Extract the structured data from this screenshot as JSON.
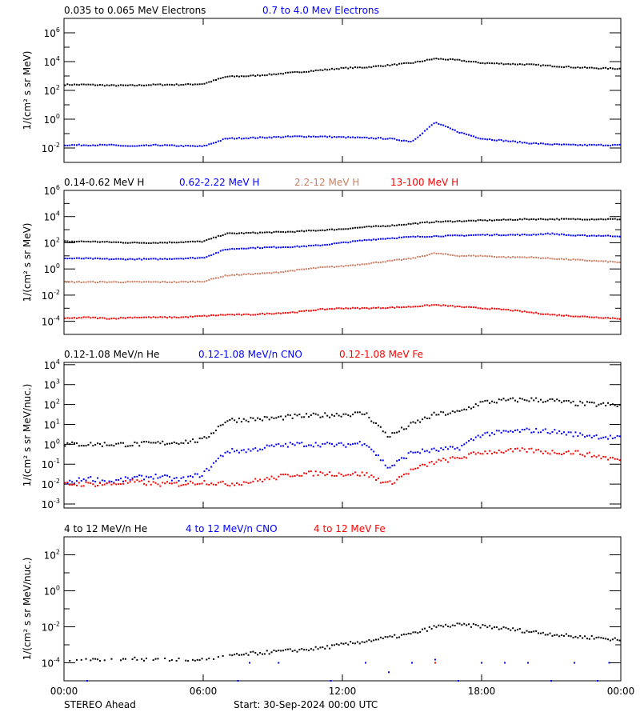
{
  "colors": {
    "black": "#000000",
    "blue": "#0000ff",
    "brown": "#c87f64",
    "red": "#ff0000"
  },
  "x_axis": {
    "range": [
      "00:00",
      "24:00"
    ],
    "tick_labels": [
      "00:00",
      "06:00",
      "12:00",
      "18:00",
      "00:00"
    ]
  },
  "footer": {
    "spacecraft": "STEREO Ahead",
    "start": "Start: 30-Sep-2024 00:00 UTC"
  },
  "chart_data": [
    {
      "type": "scatter",
      "ylabel": "1/(cm² s sr MeV)",
      "yscale": "log",
      "ylim": [
        0.001,
        10000000.0
      ],
      "ytick_exponents": [
        6,
        4,
        2,
        0,
        -2
      ],
      "x": [
        "00:00",
        "01:00",
        "02:00",
        "03:00",
        "04:00",
        "05:00",
        "06:00",
        "07:00",
        "08:00",
        "09:00",
        "10:00",
        "11:00",
        "12:00",
        "13:00",
        "14:00",
        "15:00",
        "16:00",
        "17:00",
        "18:00",
        "19:00",
        "20:00",
        "21:00",
        "22:00",
        "23:00",
        "24:00"
      ],
      "series": [
        {
          "name": "0.035 to 0.065 MeV Electrons",
          "color": "#000000",
          "values": [
            250,
            250,
            220,
            220,
            250,
            250,
            280,
            900,
            1000,
            1300,
            1800,
            2500,
            3500,
            4000,
            5600,
            8000,
            16000,
            12600,
            8000,
            7000,
            6300,
            5000,
            4000,
            3500,
            3200
          ]
        },
        {
          "name": "0.7 to 4.0 Mev Electrons",
          "color": "#0000ff",
          "values": [
            0.016,
            0.016,
            0.016,
            0.013,
            0.016,
            0.014,
            0.013,
            0.045,
            0.05,
            0.056,
            0.063,
            0.063,
            0.056,
            0.05,
            0.045,
            0.028,
            0.6,
            0.13,
            0.045,
            0.032,
            0.022,
            0.018,
            0.016,
            0.016,
            0.016
          ]
        }
      ]
    },
    {
      "type": "scatter",
      "ylabel": "1/(cm² s sr MeV)",
      "yscale": "log",
      "ylim": [
        1e-05,
        1000000.0
      ],
      "ytick_exponents": [
        6,
        4,
        2,
        0,
        -2,
        -4
      ],
      "x": [
        "00:00",
        "01:00",
        "02:00",
        "03:00",
        "04:00",
        "05:00",
        "06:00",
        "07:00",
        "08:00",
        "09:00",
        "10:00",
        "11:00",
        "12:00",
        "13:00",
        "14:00",
        "15:00",
        "16:00",
        "17:00",
        "18:00",
        "19:00",
        "20:00",
        "21:00",
        "22:00",
        "23:00",
        "24:00"
      ],
      "series": [
        {
          "name": "0.14-0.62 MeV H",
          "color": "#000000",
          "values": [
            125,
            125,
            112,
            100,
            100,
            112,
            125,
            500,
            560,
            630,
            710,
            890,
            1120,
            1580,
            2000,
            2820,
            3980,
            4470,
            5010,
            5620,
            6310,
            6310,
            6310,
            6310,
            6310
          ]
        },
        {
          "name": "0.62-2.22 MeV H",
          "color": "#0000ff",
          "values": [
            6.3,
            6.3,
            5.6,
            5.6,
            5.6,
            6.3,
            7.1,
            32,
            40,
            45,
            50,
            63,
            100,
            160,
            220,
            280,
            320,
            350,
            400,
            400,
            400,
            500,
            350,
            350,
            320
          ]
        },
        {
          "name": "2.2-12 MeV H",
          "color": "#c87f64",
          "values": [
            0.1,
            0.1,
            0.1,
            0.1,
            0.1,
            0.1,
            0.11,
            0.32,
            0.4,
            0.5,
            0.8,
            1.26,
            1.6,
            2.5,
            4,
            6.3,
            16,
            10,
            10,
            7.9,
            7.9,
            6.3,
            5,
            4,
            3.2
          ]
        },
        {
          "name": "13-100 MeV H",
          "color": "#ff0000",
          "values": [
            0.00016,
            0.0002,
            0.00016,
            0.0002,
            0.0002,
            0.0002,
            0.00025,
            0.00032,
            0.00032,
            0.0004,
            0.0005,
            0.00079,
            0.001,
            0.001,
            0.0011,
            0.0013,
            0.0018,
            0.0013,
            0.001,
            0.00079,
            0.0005,
            0.00032,
            0.00025,
            0.0002,
            0.00016
          ]
        }
      ]
    },
    {
      "type": "scatter",
      "ylabel": "1/(cm² s sr MeV/nuc.)",
      "yscale": "log",
      "ylim": [
        0.00063,
        13000.0
      ],
      "ytick_exponents": [
        4,
        3,
        2,
        1,
        0,
        -1,
        -2,
        -3
      ],
      "x": [
        "00:00",
        "01:00",
        "02:00",
        "03:00",
        "04:00",
        "05:00",
        "06:00",
        "07:00",
        "08:00",
        "09:00",
        "10:00",
        "11:00",
        "12:00",
        "13:00",
        "14:00",
        "15:00",
        "16:00",
        "17:00",
        "18:00",
        "19:00",
        "20:00",
        "21:00",
        "22:00",
        "23:00",
        "24:00"
      ],
      "series": [
        {
          "name": "0.12-1.08 MeV/n He",
          "color": "#000000",
          "values": [
            1,
            1,
            1,
            1,
            1.1,
            1.3,
            1.6,
            16,
            18,
            20,
            25,
            28,
            32,
            35,
            2.5,
            10,
            32,
            40,
            126,
            158,
            178,
            158,
            112,
            100,
            89
          ]
        },
        {
          "name": "0.12-1.08 MeV/n CNO",
          "color": "#0000ff",
          "values": [
            0.01,
            0.02,
            0.013,
            0.02,
            0.025,
            0.016,
            0.032,
            0.45,
            0.5,
            0.8,
            1,
            1,
            0.9,
            1.26,
            0.063,
            0.4,
            0.5,
            0.63,
            3.2,
            4,
            5,
            4.5,
            3.2,
            2.5,
            2
          ]
        },
        {
          "name": "0.12-1.08 MeV Fe",
          "color": "#ff0000",
          "values": [
            0.01,
            0.01,
            0.01,
            0.013,
            0.01,
            0.01,
            0.013,
            0.01,
            0.013,
            0.02,
            0.032,
            0.035,
            0.032,
            0.032,
            0.01,
            0.05,
            0.13,
            0.2,
            0.4,
            0.45,
            0.5,
            0.4,
            0.4,
            0.25,
            0.16
          ]
        }
      ]
    },
    {
      "type": "scatter",
      "ylabel": "1/(cm² s sr MeV/nuc.)",
      "yscale": "log",
      "ylim": [
        1e-05,
        1000.0
      ],
      "ytick_exponents": [
        2,
        0,
        -2,
        -4
      ],
      "x": [
        "00:00",
        "01:00",
        "02:00",
        "03:00",
        "04:00",
        "05:00",
        "06:00",
        "07:00",
        "08:00",
        "09:00",
        "10:00",
        "11:00",
        "12:00",
        "13:00",
        "14:00",
        "15:00",
        "16:00",
        "17:00",
        "18:00",
        "19:00",
        "20:00",
        "21:00",
        "22:00",
        "23:00",
        "24:00"
      ],
      "series": [
        {
          "name": "4 to 12 MeV/n He",
          "color": "#000000",
          "values": [
            0.00016,
            0.00016,
            0.00016,
            0.00016,
            0.00016,
            0.00016,
            0.00016,
            0.00022,
            0.00032,
            0.0004,
            0.0005,
            0.00063,
            0.001,
            0.0016,
            0.0025,
            0.004,
            0.01,
            0.0126,
            0.011,
            0.0079,
            0.0056,
            0.004,
            0.0028,
            0.0025,
            0.0018
          ]
        },
        {
          "name": "4 to 12 MeV/n CNO",
          "color": "#0000ff",
          "points": [
            [
              "01:00",
              1e-05
            ],
            [
              "07:30",
              1e-05
            ],
            [
              "08:00",
              0.0001
            ],
            [
              "09:15",
              0.0001
            ],
            [
              "11:30",
              1e-05
            ],
            [
              "13:00",
              0.0001
            ],
            [
              "14:00",
              3e-05
            ],
            [
              "15:00",
              0.0001
            ],
            [
              "16:00",
              0.00015
            ],
            [
              "17:00",
              1e-05
            ],
            [
              "18:00",
              0.0001
            ],
            [
              "19:00",
              0.0001
            ],
            [
              "20:00",
              0.0001
            ],
            [
              "21:00",
              1e-05
            ],
            [
              "22:00",
              0.0001
            ],
            [
              "23:00",
              1e-05
            ],
            [
              "23:30",
              0.0001
            ]
          ]
        },
        {
          "name": "4 to 12 MeV Fe",
          "color": "#ff0000",
          "points": [
            [
              "16:00",
              0.0001
            ]
          ]
        }
      ]
    }
  ]
}
